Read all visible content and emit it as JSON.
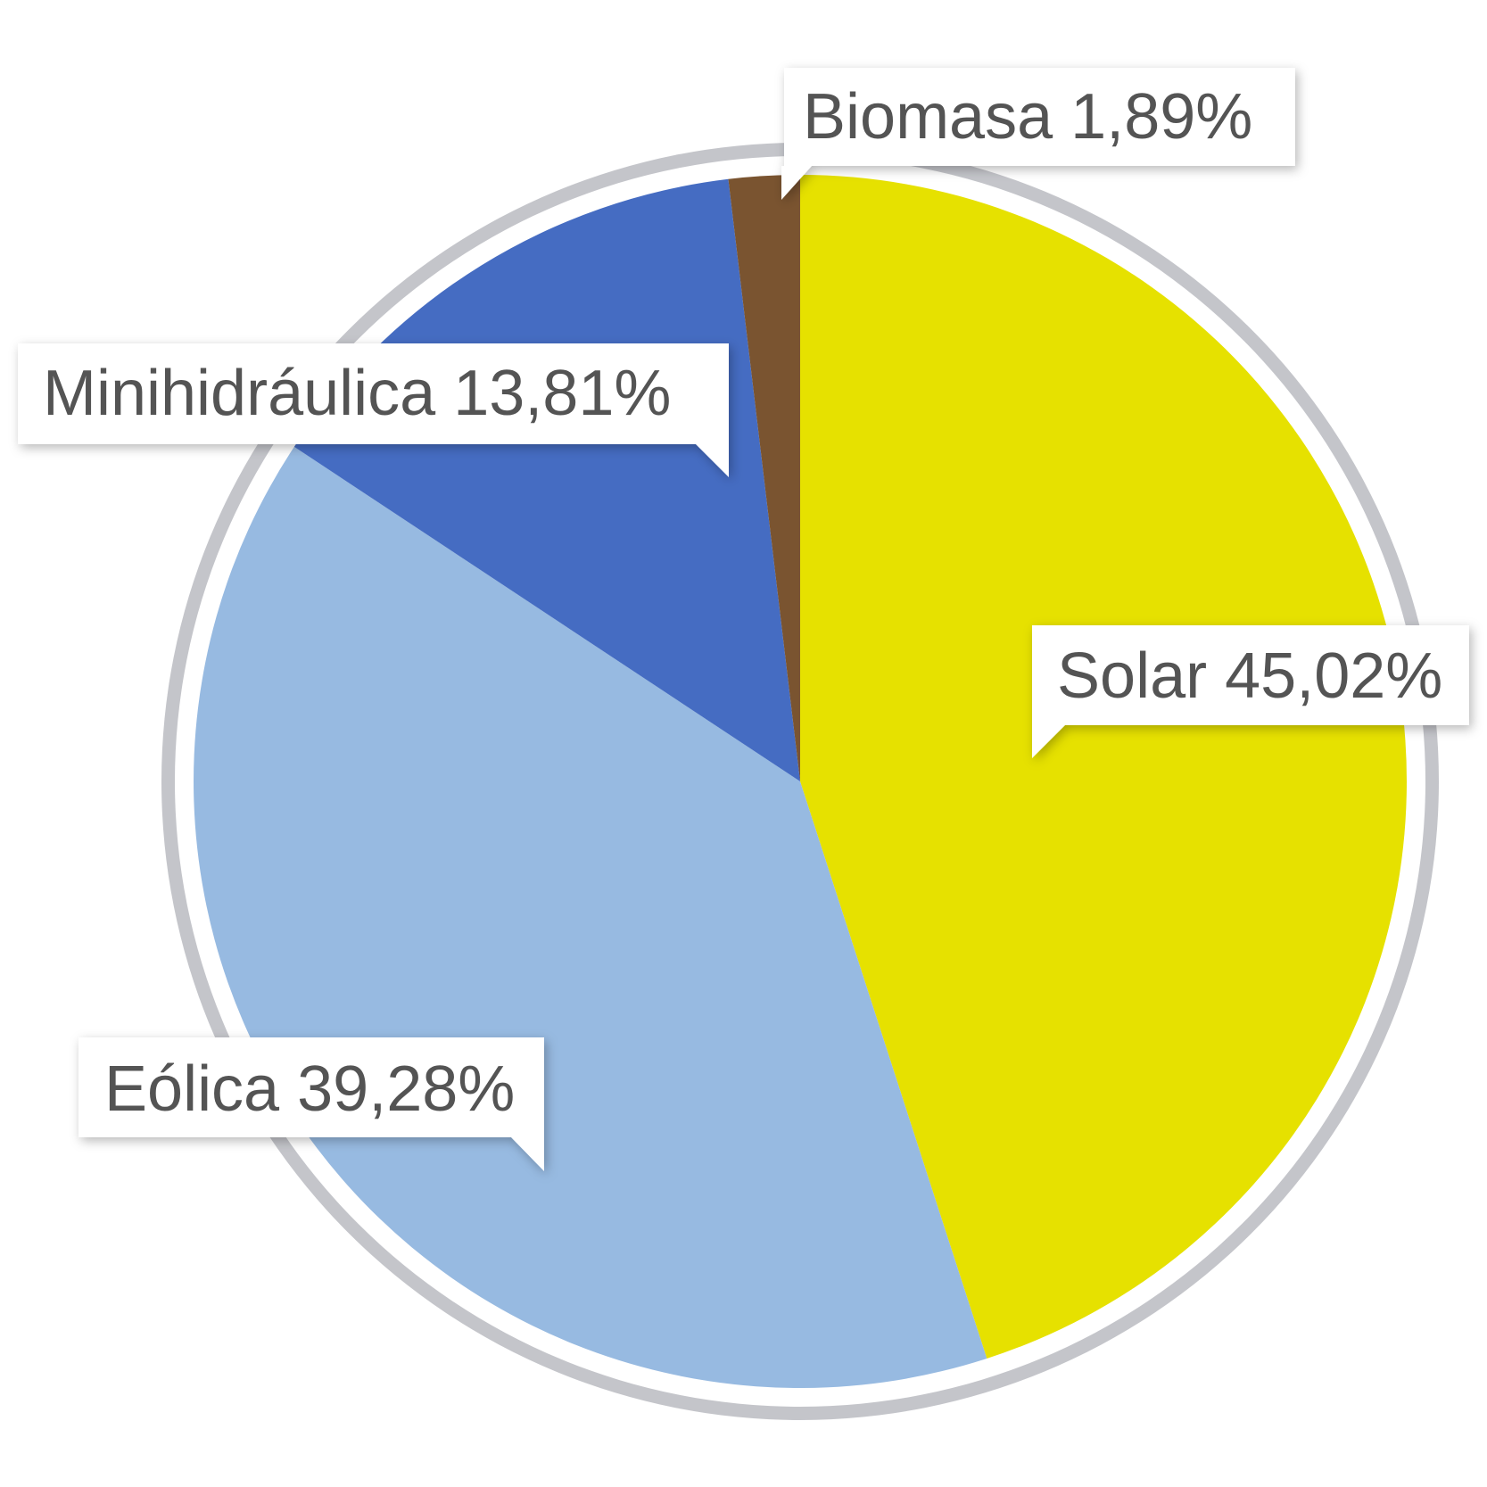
{
  "chart_data": {
    "type": "pie",
    "slices": [
      {
        "key": "solar",
        "label": "Solar",
        "value": 45.02,
        "value_label": "45,02%",
        "color": "#e6e100"
      },
      {
        "key": "eolica",
        "label": "Eólica",
        "value": 39.28,
        "value_label": "39,28%",
        "color": "#97bae1"
      },
      {
        "key": "minihidraulica",
        "label": "Minihidráulica",
        "value": 13.81,
        "value_label": "13,81%",
        "color": "#456cc2"
      },
      {
        "key": "biomasa",
        "label": "Biomasa",
        "value": 1.89,
        "value_label": "1,89%",
        "color": "#7a5430"
      }
    ],
    "start": "12 o'clock",
    "direction": "clockwise",
    "ring_color": "#c4c5ca",
    "label_box_color": "#ffffff",
    "label_text_color": "#545454"
  }
}
